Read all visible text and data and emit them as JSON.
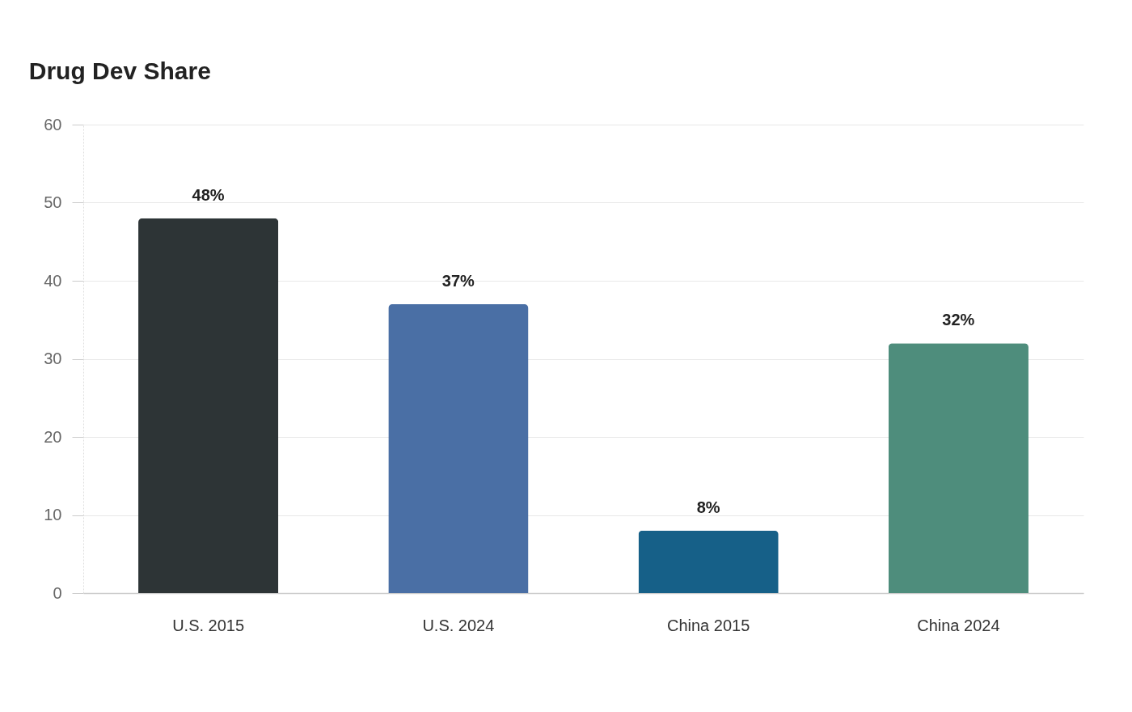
{
  "chart_data": {
    "type": "bar",
    "title": "Drug Dev Share",
    "categories": [
      "U.S. 2015",
      "U.S. 2024",
      "China 2015",
      "China 2024"
    ],
    "values": [
      48,
      37,
      8,
      32
    ],
    "colors": [
      "#2d3436",
      "#4a6fa5",
      "#166088",
      "#4e8d7c"
    ],
    "value_labels": [
      "48%",
      "37%",
      "8%",
      "32%"
    ],
    "ylim": [
      0,
      60
    ],
    "yticks": [
      0,
      10,
      20,
      30,
      40,
      50,
      60
    ],
    "grid": "y",
    "legend": false
  }
}
